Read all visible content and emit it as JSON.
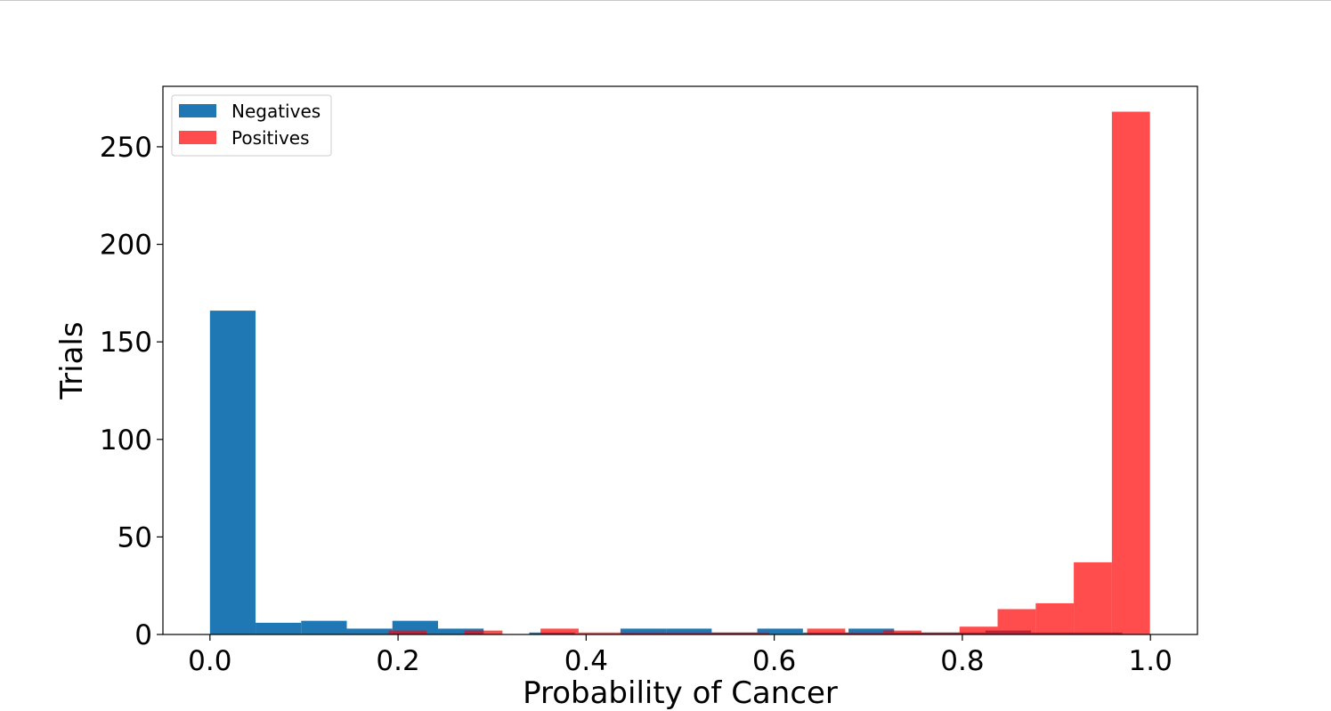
{
  "chart_data": {
    "type": "bar",
    "title": "",
    "xlabel": "Probability of Cancer",
    "ylabel": "Trials",
    "xlim": [
      -0.05,
      1.05
    ],
    "ylim": [
      0,
      281
    ],
    "xticks": [
      "0.0",
      "0.2",
      "0.4",
      "0.6",
      "0.8",
      "1.0"
    ],
    "xtick_values": [
      0.0,
      0.2,
      0.4,
      0.6,
      0.8,
      1.0
    ],
    "yticks": [
      "0",
      "50",
      "100",
      "150",
      "200",
      "250"
    ],
    "ytick_values": [
      0,
      50,
      100,
      150,
      200,
      250
    ],
    "grid": false,
    "legend_position": "upper-left",
    "series": [
      {
        "name": "Negatives",
        "color": "#1f77b4",
        "opacity": 1.0,
        "bins": [
          {
            "x0": 0.0,
            "x1": 0.0485,
            "value": 166
          },
          {
            "x0": 0.0485,
            "x1": 0.097,
            "value": 6
          },
          {
            "x0": 0.097,
            "x1": 0.1455,
            "value": 7
          },
          {
            "x0": 0.1455,
            "x1": 0.194,
            "value": 3
          },
          {
            "x0": 0.194,
            "x1": 0.2425,
            "value": 7
          },
          {
            "x0": 0.2425,
            "x1": 0.291,
            "value": 3
          },
          {
            "x0": 0.291,
            "x1": 0.3395,
            "value": 0
          },
          {
            "x0": 0.3395,
            "x1": 0.388,
            "value": 1
          },
          {
            "x0": 0.388,
            "x1": 0.4365,
            "value": 0
          },
          {
            "x0": 0.4365,
            "x1": 0.485,
            "value": 3
          },
          {
            "x0": 0.485,
            "x1": 0.5335,
            "value": 3
          },
          {
            "x0": 0.5335,
            "x1": 0.582,
            "value": 1
          },
          {
            "x0": 0.582,
            "x1": 0.6305,
            "value": 3
          },
          {
            "x0": 0.6305,
            "x1": 0.679,
            "value": 1
          },
          {
            "x0": 0.679,
            "x1": 0.7275,
            "value": 3
          },
          {
            "x0": 0.7275,
            "x1": 0.776,
            "value": 1
          },
          {
            "x0": 0.776,
            "x1": 0.8245,
            "value": 1
          },
          {
            "x0": 0.8245,
            "x1": 0.873,
            "value": 2
          },
          {
            "x0": 0.873,
            "x1": 0.9215,
            "value": 1
          },
          {
            "x0": 0.9215,
            "x1": 0.97,
            "value": 1
          }
        ]
      },
      {
        "name": "Positives",
        "color": "#ff0000",
        "opacity": 0.7,
        "bins": [
          {
            "x0": 0.19,
            "x1": 0.2305,
            "value": 2
          },
          {
            "x0": 0.2705,
            "x1": 0.311,
            "value": 2
          },
          {
            "x0": 0.3515,
            "x1": 0.392,
            "value": 3
          },
          {
            "x0": 0.392,
            "x1": 0.4325,
            "value": 1
          },
          {
            "x0": 0.4325,
            "x1": 0.473,
            "value": 1
          },
          {
            "x0": 0.473,
            "x1": 0.5135,
            "value": 1
          },
          {
            "x0": 0.5135,
            "x1": 0.554,
            "value": 1
          },
          {
            "x0": 0.554,
            "x1": 0.5945,
            "value": 1
          },
          {
            "x0": 0.635,
            "x1": 0.6755,
            "value": 3
          },
          {
            "x0": 0.6755,
            "x1": 0.716,
            "value": 1
          },
          {
            "x0": 0.716,
            "x1": 0.7565,
            "value": 2
          },
          {
            "x0": 0.7565,
            "x1": 0.797,
            "value": 1
          },
          {
            "x0": 0.797,
            "x1": 0.8375,
            "value": 4
          },
          {
            "x0": 0.8375,
            "x1": 0.878,
            "value": 13
          },
          {
            "x0": 0.878,
            "x1": 0.9185,
            "value": 16
          },
          {
            "x0": 0.9185,
            "x1": 0.959,
            "value": 37
          },
          {
            "x0": 0.959,
            "x1": 0.9995,
            "value": 268
          }
        ]
      }
    ]
  }
}
